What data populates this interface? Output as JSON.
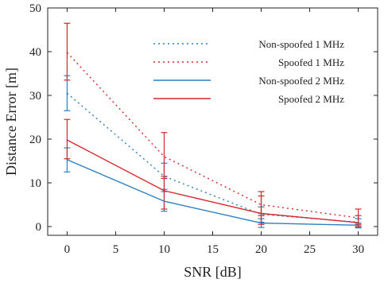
{
  "chart_data": {
    "type": "line",
    "title": "",
    "xlabel": "SNR [dB]",
    "ylabel": "Distance Error [m]",
    "xlim": [
      -2,
      32
    ],
    "ylim": [
      -2,
      50
    ],
    "xticks": [
      0,
      5,
      10,
      15,
      20,
      25,
      30
    ],
    "yticks": [
      0,
      10,
      20,
      30,
      40,
      50
    ],
    "grid": false,
    "legend_position": "top-right",
    "x": [
      0,
      10,
      20,
      30
    ],
    "series": [
      {
        "name": "Non-spoofed 1 MHz",
        "style": "dotted",
        "color": "#2a7fc1",
        "values": [
          30.5,
          11.5,
          2.8,
          1.0
        ],
        "error_low": [
          26.5,
          8.5,
          1.0,
          0.2
        ],
        "error_high": [
          34.5,
          14.5,
          4.5,
          1.8
        ]
      },
      {
        "name": "Spoofed 1 MHz",
        "style": "dotted",
        "color": "#d7262b",
        "values": [
          39.8,
          16.0,
          5.0,
          2.0
        ],
        "error_low": [
          33.5,
          11.0,
          2.5,
          0.5
        ],
        "error_high": [
          46.5,
          21.5,
          8.0,
          4.0
        ]
      },
      {
        "name": "Non-spoofed 2 MHz",
        "style": "solid",
        "color": "#2a7fc1",
        "values": [
          15.3,
          5.8,
          0.8,
          0.3
        ],
        "error_low": [
          12.5,
          3.5,
          -0.2,
          -0.3
        ],
        "error_high": [
          18.0,
          8.0,
          1.8,
          0.8
        ]
      },
      {
        "name": "Spoofed 2 MHz",
        "style": "solid",
        "color": "#d7262b",
        "values": [
          19.8,
          8.2,
          3.0,
          0.9
        ],
        "error_low": [
          15.5,
          4.0,
          0.5,
          -0.1
        ],
        "error_high": [
          24.5,
          11.5,
          7.0,
          2.5
        ]
      }
    ]
  }
}
